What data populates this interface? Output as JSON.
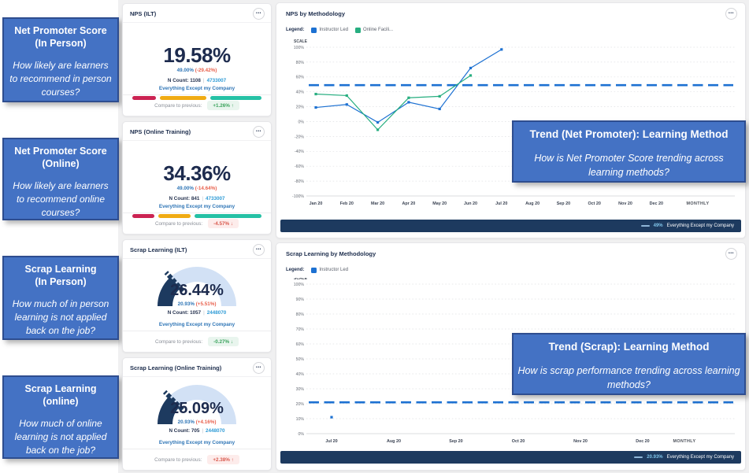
{
  "colors": {
    "callout_bg": "#4472c4",
    "callout_border": "#2e4d8f",
    "navy": "#1d2b4e",
    "benchmark_blue": "#2e75b6",
    "delta_red": "#e8604c",
    "link_blue": "#2e9bd6",
    "seg_colors": [
      "#cb2352",
      "#f0ab13",
      "#25c1a5"
    ],
    "line_blue": "#1d71d2",
    "line_green": "#27ae80",
    "footer_navy": "#1d3a5f",
    "gauge_light": "#d2e1f5",
    "gauge_dark": "#1d3a5f"
  },
  "ui": {
    "menu_dots": "•••",
    "legend_label": "Legend:",
    "scale_label": "SCALE",
    "compare_label": "Compare to previous:"
  },
  "left_callouts": [
    {
      "slug": "nps-in-person",
      "title_line1": "Net Promoter Score",
      "title_line2": "(In Person)",
      "question": "How likely are learners to recommend in person courses?"
    },
    {
      "slug": "nps-online",
      "title_line1": "Net Promoter Score",
      "title_line2": "(Online)",
      "question": "How likely are learners to recommend online courses?"
    },
    {
      "slug": "scrap-in-person",
      "title_line1": "Scrap Learning",
      "title_line2": "(In Person)",
      "question": "How much of in person learning is not applied back on the job?"
    },
    {
      "slug": "scrap-online",
      "title_line1": "Scrap Learning",
      "title_line2": "(online)",
      "question": "How much of online learning is not applied back on the job?"
    }
  ],
  "right_callouts": [
    {
      "slug": "trend-net-promoter",
      "title": "Trend (Net Promoter): Learning Method",
      "question": "How is Net Promoter Score trending across learning methods?"
    },
    {
      "slug": "trend-scrap",
      "title": "Trend (Scrap): Learning Method",
      "question": "How is scrap performance trending across learning methods?"
    }
  ],
  "cards": [
    {
      "slug": "nps-ilt",
      "kind": "nps",
      "title": "NPS (ILT)",
      "value": "19.58%",
      "benchmark": "49.00%",
      "delta": "(-29.42%)",
      "n_label": "N Count: 1108",
      "n_sep": "|",
      "n_alt": "4733007",
      "benchmark_name": "Everything Except my Company",
      "segments": [
        32,
        62,
        69
      ],
      "compare": {
        "value": "+1.26%",
        "arrow": "↑",
        "tone": "good"
      }
    },
    {
      "slug": "nps-online-training",
      "kind": "nps",
      "title": "NPS (Online Training)",
      "value": "34.36%",
      "benchmark": "49.00%",
      "delta": "(-14.64%)",
      "n_label": "N Count: 841",
      "n_sep": "|",
      "n_alt": "4733007",
      "benchmark_name": "Everything Except my Company",
      "segments": [
        30,
        43,
        91
      ],
      "compare": {
        "value": "-4.57%",
        "arrow": "↓",
        "tone": "bad"
      }
    },
    {
      "slug": "scrap-ilt",
      "kind": "gauge",
      "title": "Scrap Learning (ILT)",
      "value": "26.44%",
      "gauge_percent": 26.44,
      "benchmark": "20.93%",
      "delta": "(+5.51%)",
      "n_label": "N Count: 1057",
      "n_sep": "|",
      "n_alt": "2448070",
      "benchmark_name": "Everything Except my Company",
      "compare": {
        "value": "-0.27%",
        "arrow": "↓",
        "tone": "good"
      }
    },
    {
      "slug": "scrap-online-training",
      "kind": "gauge",
      "title": "Scrap Learning (Online Training)",
      "value": "25.09%",
      "gauge_percent": 25.09,
      "benchmark": "20.93%",
      "delta": "(+4.16%)",
      "n_label": "N Count: 705",
      "n_sep": "|",
      "n_alt": "2448070",
      "benchmark_name": "Everything Except my Company",
      "compare": {
        "value": "+2.38%",
        "arrow": "↑",
        "tone": "bad"
      }
    }
  ],
  "chart_data": [
    {
      "slug": "nps-by-methodology",
      "type": "line",
      "title": "NPS by Methodology",
      "x": [
        "Jan 20",
        "Feb 20",
        "Mar 20",
        "Apr 20",
        "May 20",
        "Jun 20",
        "Jul 20",
        "Aug 20",
        "Sep 20",
        "Oct 20",
        "Nov 20",
        "Dec 20"
      ],
      "x_suffix": "MONTHLY",
      "ylim": [
        -100,
        100
      ],
      "ytick_step": 20,
      "grid": true,
      "legend_position": "top",
      "benchmark": {
        "value": 49,
        "name": "Everything Except my Company"
      },
      "series": [
        {
          "name": "Instructor Led",
          "color": "#1d71d2",
          "values": [
            19,
            23,
            -1,
            26,
            17,
            72,
            97,
            null,
            null,
            null,
            null,
            null
          ]
        },
        {
          "name": "Online Facili...",
          "color": "#27ae80",
          "values": [
            37,
            35,
            -11,
            32,
            34,
            62,
            null,
            null,
            null,
            null,
            null,
            null
          ]
        }
      ],
      "footer": {
        "value_label": "49%",
        "name": "Everything Except my Company"
      }
    },
    {
      "slug": "scrap-by-methodology",
      "type": "line",
      "title": "Scrap Learning by Methodology",
      "x": [
        "Jul 20",
        "Aug 20",
        "Sep 20",
        "Oct 20",
        "Nov 20",
        "Dec 20"
      ],
      "x_suffix": "MONTHLY",
      "ylim": [
        0,
        100
      ],
      "ytick_step": 10,
      "grid": true,
      "legend_position": "top",
      "benchmark": {
        "value": 20.93,
        "name": "Everything Except my Company"
      },
      "series": [
        {
          "name": "Instructor Led",
          "color": "#1d71d2",
          "values": [
            11,
            null,
            null,
            null,
            null,
            null
          ]
        }
      ],
      "footer": {
        "value_label": "20.93%",
        "name": "Everything Except my Company"
      }
    }
  ]
}
